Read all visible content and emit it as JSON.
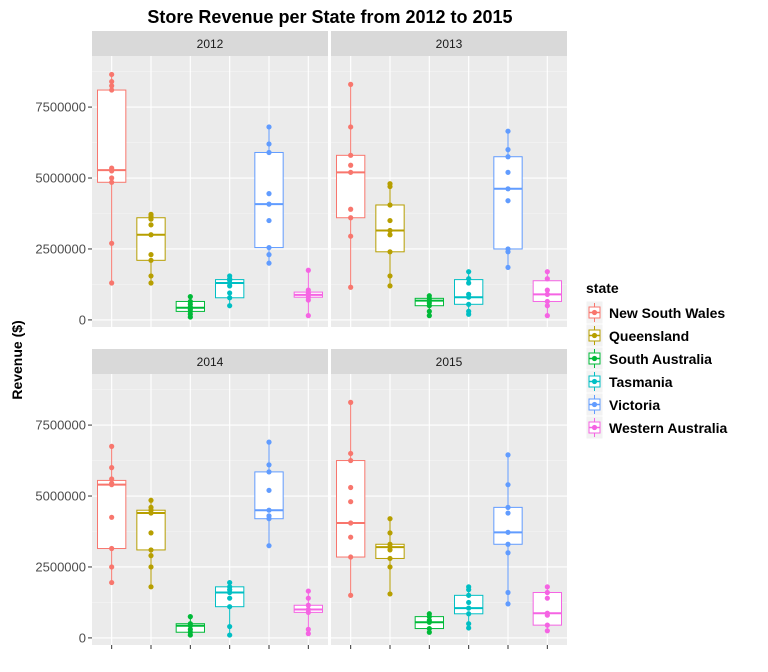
{
  "chart_data": {
    "type": "boxplot",
    "title": "Store Revenue per State from 2012 to 2015",
    "xlabel": "",
    "ylabel": "Revenue ($)",
    "ylim": [
      -250000,
      9300000
    ],
    "y_ticks": [
      0,
      2500000,
      5000000,
      7500000
    ],
    "y_tick_labels": [
      "0",
      "2500000",
      "5000000",
      "7500000"
    ],
    "legend": {
      "title": "state",
      "placement": "right"
    },
    "grid": true,
    "series": [
      {
        "name": "New South Wales",
        "color": "#F8766D"
      },
      {
        "name": "Queensland",
        "color": "#B79F00"
      },
      {
        "name": "South Australia",
        "color": "#00BA38"
      },
      {
        "name": "Tasmania",
        "color": "#00BFC4"
      },
      {
        "name": "Victoria",
        "color": "#619CFF"
      },
      {
        "name": "Western Australia",
        "color": "#F564E3"
      }
    ],
    "panels": [
      {
        "label": "2012",
        "boxes": [
          {
            "min": 1300000,
            "q1": 4850000,
            "median": 5280000,
            "q3": 8100000,
            "max": 8650000,
            "points": [
              8650000,
              8400000,
              8250000,
              8100000,
              5350000,
              5250000,
              5000000,
              4850000,
              2700000,
              1300000
            ]
          },
          {
            "min": 1300000,
            "q1": 2100000,
            "median": 3000000,
            "q3": 3600000,
            "max": 3720000,
            "points": [
              3720000,
              3650000,
              3550000,
              3350000,
              3000000,
              2300000,
              2100000,
              1550000,
              1300000
            ]
          },
          {
            "min": 100000,
            "q1": 300000,
            "median": 430000,
            "q3": 650000,
            "max": 820000,
            "points": [
              820000,
              650000,
              550000,
              450000,
              380000,
              300000,
              200000,
              100000
            ]
          },
          {
            "min": 500000,
            "q1": 780000,
            "median": 1300000,
            "q3": 1420000,
            "max": 1550000,
            "points": [
              1550000,
              1450000,
              1400000,
              1300000,
              1200000,
              950000,
              780000,
              500000
            ]
          },
          {
            "min": 2000000,
            "q1": 2550000,
            "median": 4080000,
            "q3": 5900000,
            "max": 6800000,
            "points": [
              6800000,
              6200000,
              5900000,
              4450000,
              4080000,
              3500000,
              2550000,
              2300000,
              2000000
            ]
          },
          {
            "min": 150000,
            "q1": 800000,
            "median": 880000,
            "q3": 980000,
            "max": 1750000,
            "points": [
              1750000,
              1050000,
              950000,
              880000,
              800000,
              700000,
              150000
            ]
          }
        ]
      },
      {
        "label": "2013",
        "boxes": [
          {
            "min": 1150000,
            "q1": 3600000,
            "median": 5200000,
            "q3": 5800000,
            "max": 8300000,
            "points": [
              8300000,
              6800000,
              5800000,
              5450000,
              5200000,
              3900000,
              3600000,
              2950000,
              1150000
            ]
          },
          {
            "min": 1200000,
            "q1": 2400000,
            "median": 3150000,
            "q3": 4050000,
            "max": 4800000,
            "points": [
              4800000,
              4700000,
              4050000,
              3500000,
              3150000,
              3000000,
              2400000,
              1550000,
              1200000
            ]
          },
          {
            "min": 150000,
            "q1": 500000,
            "median": 680000,
            "q3": 760000,
            "max": 850000,
            "points": [
              850000,
              760000,
              680000,
              600000,
              500000,
              300000,
              150000
            ]
          },
          {
            "min": 200000,
            "q1": 550000,
            "median": 800000,
            "q3": 1420000,
            "max": 1700000,
            "points": [
              1700000,
              1450000,
              1300000,
              900000,
              800000,
              550000,
              300000,
              200000
            ]
          },
          {
            "min": 1850000,
            "q1": 2500000,
            "median": 4620000,
            "q3": 5750000,
            "max": 6650000,
            "points": [
              6650000,
              6000000,
              5750000,
              5200000,
              4620000,
              4200000,
              2500000,
              2400000,
              1850000
            ]
          },
          {
            "min": 150000,
            "q1": 650000,
            "median": 900000,
            "q3": 1380000,
            "max": 1700000,
            "points": [
              1700000,
              1450000,
              1050000,
              900000,
              650000,
              500000,
              150000
            ]
          }
        ]
      },
      {
        "label": "2014",
        "boxes": [
          {
            "min": 1950000,
            "q1": 3150000,
            "median": 5400000,
            "q3": 5550000,
            "max": 6750000,
            "points": [
              6750000,
              6000000,
              5600000,
              5450000,
              5400000,
              4250000,
              3150000,
              2500000,
              1950000
            ]
          },
          {
            "min": 1800000,
            "q1": 3100000,
            "median": 4400000,
            "q3": 4500000,
            "max": 4850000,
            "points": [
              4850000,
              4600000,
              4500000,
              4400000,
              3700000,
              3100000,
              2900000,
              2500000,
              1800000
            ]
          },
          {
            "min": 100000,
            "q1": 200000,
            "median": 430000,
            "q3": 500000,
            "max": 750000,
            "points": [
              750000,
              500000,
              430000,
              300000,
              200000,
              100000
            ]
          },
          {
            "min": 100000,
            "q1": 1100000,
            "median": 1600000,
            "q3": 1800000,
            "max": 1950000,
            "points": [
              1950000,
              1800000,
              1700000,
              1600000,
              1400000,
              1100000,
              400000,
              100000
            ]
          },
          {
            "min": 3250000,
            "q1": 4200000,
            "median": 4500000,
            "q3": 5850000,
            "max": 6900000,
            "points": [
              6900000,
              6100000,
              5850000,
              5200000,
              4500000,
              4300000,
              4200000,
              3250000
            ]
          },
          {
            "min": 150000,
            "q1": 900000,
            "median": 1000000,
            "q3": 1150000,
            "max": 1650000,
            "points": [
              1650000,
              1400000,
              1150000,
              1000000,
              900000,
              300000,
              150000
            ]
          }
        ]
      },
      {
        "label": "2015",
        "boxes": [
          {
            "min": 1500000,
            "q1": 2850000,
            "median": 4050000,
            "q3": 6250000,
            "max": 8300000,
            "points": [
              8300000,
              6500000,
              6250000,
              5300000,
              4800000,
              4050000,
              3550000,
              2850000,
              1500000
            ]
          },
          {
            "min": 1550000,
            "q1": 2800000,
            "median": 3200000,
            "q3": 3300000,
            "max": 4200000,
            "points": [
              4200000,
              3700000,
              3300000,
              3200000,
              3100000,
              2800000,
              2500000,
              1550000
            ]
          },
          {
            "min": 200000,
            "q1": 330000,
            "median": 550000,
            "q3": 750000,
            "max": 850000,
            "points": [
              850000,
              750000,
              620000,
              550000,
              330000,
              200000
            ]
          },
          {
            "min": 350000,
            "q1": 850000,
            "median": 1050000,
            "q3": 1500000,
            "max": 1800000,
            "points": [
              1800000,
              1700000,
              1500000,
              1250000,
              1050000,
              850000,
              500000,
              350000
            ]
          },
          {
            "min": 1200000,
            "q1": 3300000,
            "median": 3720000,
            "q3": 4600000,
            "max": 6450000,
            "points": [
              6450000,
              5400000,
              4600000,
              4400000,
              3720000,
              3300000,
              3000000,
              1600000,
              1200000
            ]
          },
          {
            "min": 250000,
            "q1": 450000,
            "median": 870000,
            "q3": 1600000,
            "max": 1800000,
            "points": [
              1800000,
              1600000,
              1400000,
              870000,
              800000,
              450000,
              250000
            ]
          }
        ]
      }
    ]
  }
}
